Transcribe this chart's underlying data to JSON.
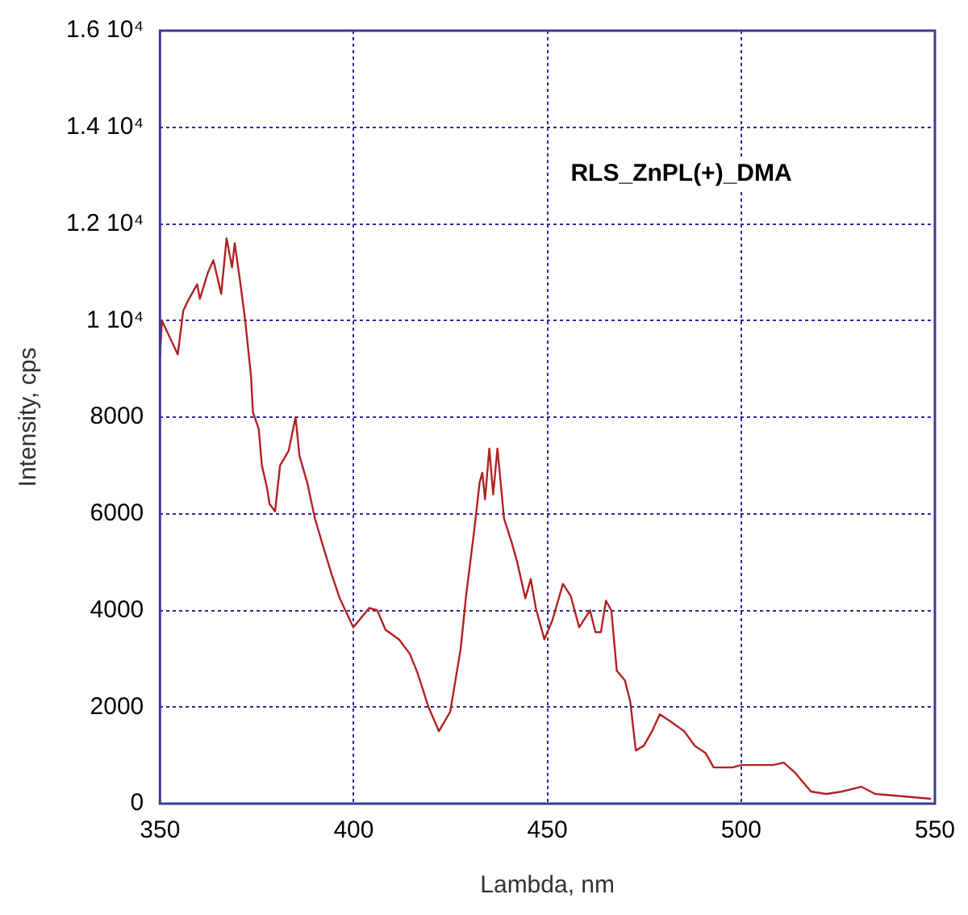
{
  "chart_data": {
    "type": "line",
    "xlabel": "Lambda, nm",
    "ylabel": "Intensity, cps",
    "annotations": [
      "RLS_ZnPL(+)_DMA"
    ],
    "x": [
      350,
      350.5,
      354.6,
      356,
      357.5,
      359.6,
      360.3,
      362.4,
      363.8,
      365.8,
      367.2,
      368.6,
      369.3,
      370.7,
      372,
      373.5,
      374,
      375.5,
      376.3,
      377.6,
      378.3,
      379.7,
      381,
      383.2,
      385,
      386,
      388,
      390,
      392.2,
      394.3,
      396.4,
      399.9,
      404,
      406.1,
      408.2,
      411.7,
      414.5,
      416.5,
      419.3,
      422,
      424.9,
      427.6,
      429,
      431.1,
      432.5,
      433.2,
      433.9,
      435,
      436,
      437.1,
      438.8,
      440.8,
      442.2,
      444.3,
      445.7,
      447,
      449.2,
      451.3,
      454,
      456,
      458.2,
      461,
      462.4,
      463.8,
      465.1,
      466.5,
      467.9,
      470,
      471.4,
      472.8,
      474.9,
      477,
      479,
      481.8,
      485.3,
      488,
      490.8,
      492.9,
      497.8,
      500,
      508.2,
      511,
      513.8,
      518,
      522,
      526,
      531,
      534.6,
      542,
      549
    ],
    "series": [
      {
        "color": "#b22222",
        "values": [
          9250,
          10000,
          9300,
          10200,
          10450,
          10750,
          10450,
          11000,
          11250,
          10550,
          11700,
          11100,
          11600,
          10800,
          10000,
          8850,
          8100,
          7750,
          7000,
          6550,
          6200,
          6050,
          7000,
          7300,
          8000,
          7200,
          6650,
          5900,
          5300,
          4750,
          4250,
          3650,
          4050,
          4000,
          3600,
          3400,
          3100,
          2700,
          2000,
          1500,
          1900,
          3200,
          4300,
          5650,
          6650,
          6850,
          6300,
          7350,
          6400,
          7350,
          5900,
          5400,
          5000,
          4250,
          4650,
          4050,
          3400,
          3800,
          4550,
          4300,
          3650,
          4000,
          3550,
          3550,
          4200,
          4000,
          2750,
          2550,
          2100,
          1100,
          1200,
          1500,
          1850,
          1700,
          1500,
          1200,
          1050,
          750,
          750,
          800,
          800,
          850,
          650,
          250,
          200,
          250,
          350,
          200,
          150,
          100
        ]
      }
    ],
    "xlim": [
      350,
      550
    ],
    "xticks": [
      350,
      400,
      450,
      500,
      550
    ],
    "ylim": [
      0,
      16000
    ],
    "yticks": [
      0,
      2000,
      4000,
      6000,
      8000,
      {
        "value": 10000,
        "label": "1 10⁴"
      },
      {
        "value": 12000,
        "label": "1.2 10⁴"
      },
      {
        "value": 14000,
        "label": "1.4 10⁴"
      },
      {
        "value": 16000,
        "label": "1.6 10⁴"
      }
    ],
    "grid": true,
    "legend": false,
    "marker": "none",
    "line_style": "solid"
  }
}
